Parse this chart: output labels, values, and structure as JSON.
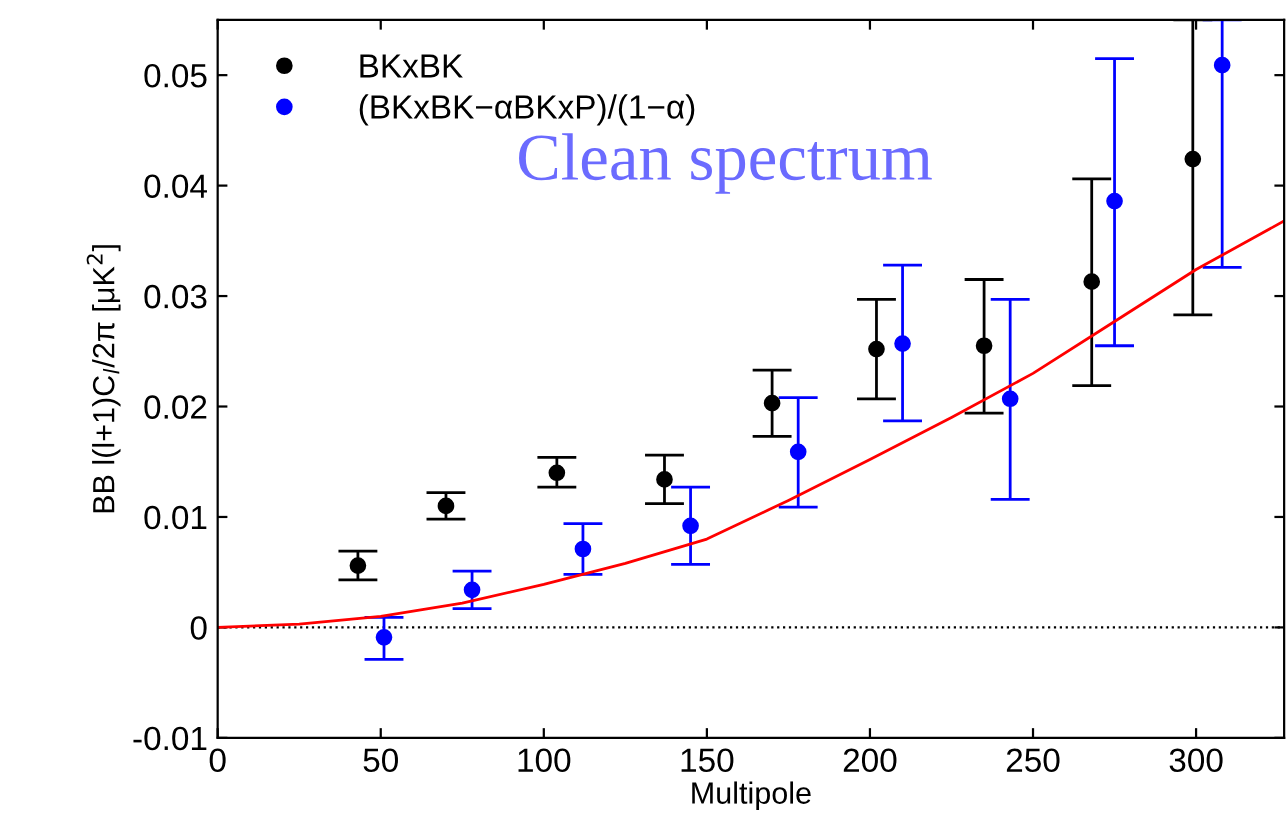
{
  "chart_data": {
    "type": "scatter",
    "xlabel": "Multipole",
    "ylabel": "BB l(l+1)C$_{l}$/2π [μK$^{2}$]",
    "annotations": [
      "Clean spectrum"
    ],
    "xlim": [
      0,
      327
    ],
    "ylim": [
      -0.01,
      0.055
    ],
    "xticks": [
      0,
      50,
      100,
      150,
      200,
      250,
      300
    ],
    "yticks": [
      -0.01,
      0,
      0.01,
      0.02,
      0.03,
      0.04,
      0.05
    ],
    "grid": false,
    "legend": "top left",
    "marker": "circle",
    "ref_lines": [
      {
        "axis": "y",
        "value": 0,
        "color": "#000000",
        "line_style": "dotted"
      }
    ],
    "series": [
      {
        "name": "BKxBK",
        "color": "#000000",
        "x": [
          43,
          70,
          104,
          137,
          170,
          202,
          235,
          268,
          299
        ],
        "values": [
          0.0056,
          0.011,
          0.014,
          0.0134,
          0.0203,
          0.0252,
          0.0255,
          0.0313,
          0.0424
        ],
        "errors": [
          [
            0.0043,
            0.0069
          ],
          [
            0.0098,
            0.0122
          ],
          [
            0.0127,
            0.0154
          ],
          [
            0.0112,
            0.0156
          ],
          [
            0.0173,
            0.0233
          ],
          [
            0.0207,
            0.0297
          ],
          [
            0.0194,
            0.0315
          ],
          [
            0.0219,
            0.0406
          ],
          [
            0.0283,
            0.055
          ]
        ]
      },
      {
        "name": "(BKxBK−αBKxP)/(1−α)",
        "color": "#0000ff",
        "x": [
          51,
          78,
          112,
          145,
          178,
          210,
          243,
          275,
          308
        ],
        "values": [
          -0.0009,
          0.0034,
          0.0071,
          0.0092,
          0.0159,
          0.0257,
          0.0207,
          0.0386,
          0.0509
        ],
        "errors": [
          [
            -0.0029,
            0.0009
          ],
          [
            0.0017,
            0.0051
          ],
          [
            0.0048,
            0.0094
          ],
          [
            0.0057,
            0.0127
          ],
          [
            0.0109,
            0.0208
          ],
          [
            0.0187,
            0.0328
          ],
          [
            0.0116,
            0.0297
          ],
          [
            0.0255,
            0.0515
          ],
          [
            0.0326,
            0.055
          ]
        ]
      },
      {
        "type": "line",
        "color": "#ff0000",
        "marker": "none",
        "x": [
          0,
          25,
          50,
          75,
          100,
          125,
          150,
          175,
          200,
          225,
          250,
          275,
          300,
          327
        ],
        "values": [
          0,
          0.0003,
          0.001,
          0.0022,
          0.0039,
          0.0058,
          0.008,
          0.0115,
          0.0152,
          0.019,
          0.023,
          0.0277,
          0.0324,
          0.0368
        ]
      }
    ]
  }
}
